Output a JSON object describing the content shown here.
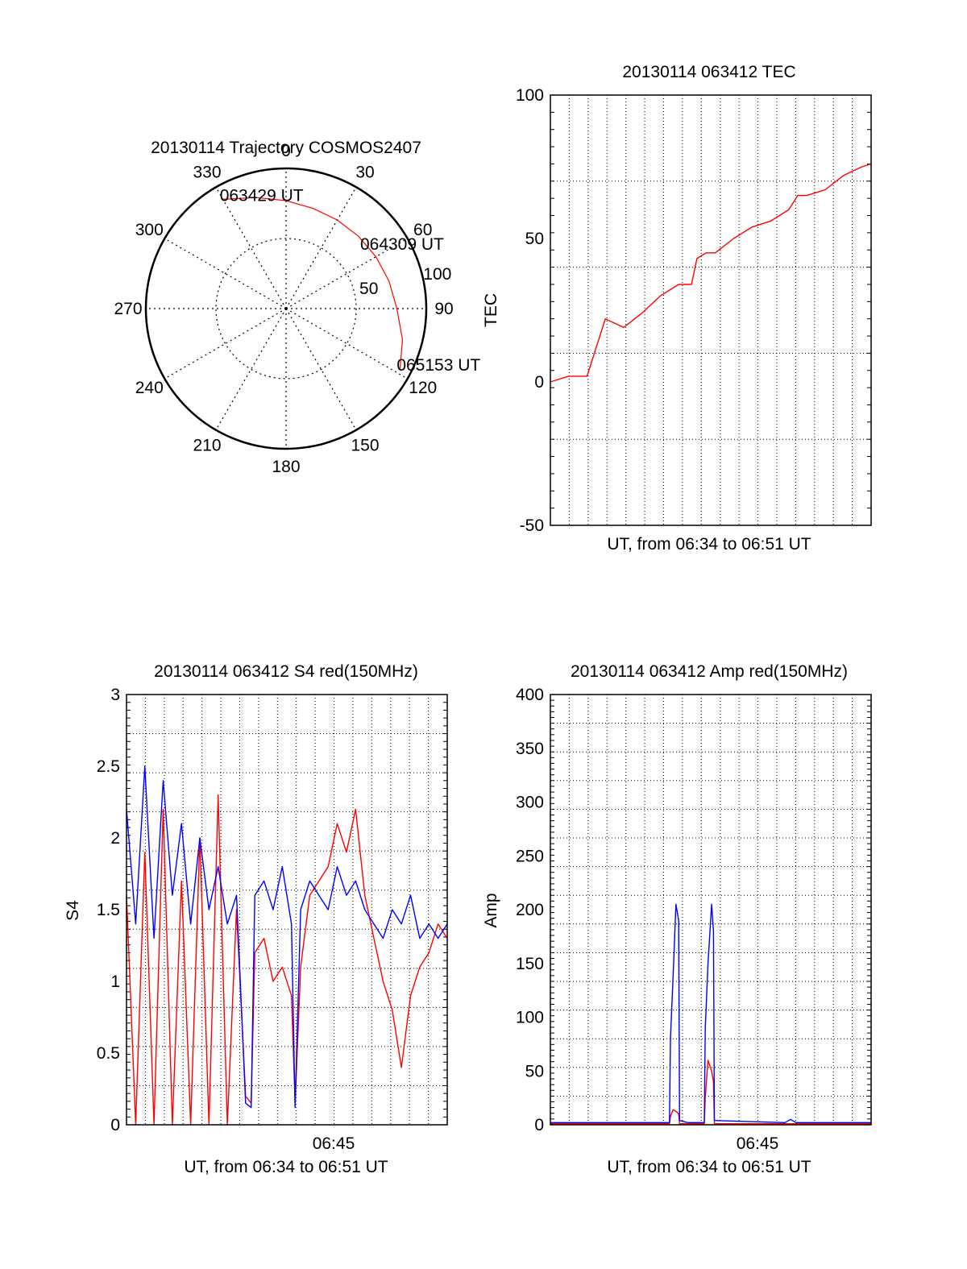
{
  "colors": {
    "red": "#ff0000",
    "blue": "#0000ff",
    "axis": "#000000",
    "grid": "#000000"
  },
  "chart_data": [
    {
      "type": "polar",
      "title": "20130114 Trajectory COSMOS2407",
      "angle_labels": [
        "0",
        "30",
        "60",
        "90",
        "120",
        "150",
        "180",
        "210",
        "240",
        "270",
        "300",
        "330"
      ],
      "radius_labels": [
        "50",
        "100"
      ],
      "radius_values": [
        50,
        100
      ],
      "grid": true,
      "series": [
        {
          "color": "red",
          "points": [
            {
              "az": 330,
              "zr": 90
            },
            {
              "az": 345,
              "zr": 82
            },
            {
              "az": 0,
              "zr": 77
            },
            {
              "az": 15,
              "zr": 74
            },
            {
              "az": 30,
              "zr": 73
            },
            {
              "az": 45,
              "zr": 73
            },
            {
              "az": 60,
              "zr": 74
            },
            {
              "az": 75,
              "zr": 76
            },
            {
              "az": 90,
              "zr": 79
            },
            {
              "az": 105,
              "zr": 86
            },
            {
              "az": 118,
              "zr": 92
            }
          ]
        }
      ],
      "annotations": [
        {
          "text": "063429 UT",
          "az": 330,
          "zr": 90
        },
        {
          "text": "064309 UT",
          "az": 52,
          "zr": 70
        },
        {
          "text": "065153 UT",
          "az": 118,
          "zr": 92
        }
      ]
    },
    {
      "type": "line",
      "title": "20130114 063412 TEC",
      "ylabel": "TEC",
      "xlabel": "UT, from 06:34 to 06:51 UT",
      "xlim": [
        0,
        17.5
      ],
      "ylim": [
        -50,
        100
      ],
      "yticks": [
        -50,
        0,
        50,
        100
      ],
      "xticks": [],
      "grid": true,
      "series": [
        {
          "color": "red",
          "x": [
            0,
            1,
            2,
            3,
            4,
            5,
            6,
            7,
            7.7,
            8,
            8.5,
            9,
            10,
            11,
            12,
            13,
            13.5,
            14,
            15,
            16,
            17,
            17.5
          ],
          "y": [
            0,
            2,
            2,
            22,
            19,
            24,
            30,
            34,
            34,
            43,
            45,
            45,
            50,
            54,
            56,
            60,
            65,
            65,
            67,
            72,
            75,
            76
          ]
        }
      ]
    },
    {
      "type": "line",
      "title": "20130114 063412 S4 red(150MHz)",
      "ylabel": "S4",
      "xlabel": "UT, from 06:34 to 06:51 UT",
      "xlim": [
        0,
        17.5
      ],
      "ylim": [
        0,
        3
      ],
      "yticks": [
        0,
        0.5,
        1,
        1.5,
        2,
        2.5,
        3
      ],
      "xticks": [
        {
          "value": 11.3,
          "label": "06:45"
        }
      ],
      "grid": true,
      "series": [
        {
          "color": "red",
          "x": [
            0,
            0.5,
            1,
            1.5,
            2,
            2.5,
            3,
            3.5,
            4,
            4.5,
            5,
            5.5,
            6,
            6.5,
            6.8,
            7,
            7.5,
            8,
            8.5,
            9,
            9.2,
            9.5,
            10,
            10.5,
            11,
            11.5,
            12,
            12.5,
            13,
            13.5,
            14,
            14.5,
            15,
            15.5,
            16,
            16.5,
            17,
            17.5
          ],
          "y": [
            1.6,
            0,
            1.9,
            0,
            2.2,
            0,
            1.7,
            0,
            2.0,
            0,
            2.3,
            0,
            1.5,
            0.2,
            0.15,
            1.2,
            1.3,
            1.0,
            1.1,
            0.9,
            0.15,
            1.1,
            1.6,
            1.7,
            1.8,
            2.1,
            1.9,
            2.2,
            1.6,
            1.3,
            1.0,
            0.8,
            0.4,
            0.9,
            1.1,
            1.2,
            1.4,
            1.3
          ]
        },
        {
          "color": "blue",
          "x": [
            0,
            0.5,
            1,
            1.5,
            2,
            2.5,
            3,
            3.5,
            4,
            4.5,
            5,
            5.5,
            6,
            6.5,
            6.8,
            7,
            7.5,
            8,
            8.5,
            9,
            9.2,
            9.5,
            10,
            10.5,
            11,
            11.5,
            12,
            12.5,
            13,
            13.5,
            14,
            14.5,
            15,
            15.5,
            16,
            16.5,
            17,
            17.5
          ],
          "y": [
            2.2,
            1.4,
            2.5,
            1.3,
            2.4,
            1.6,
            2.1,
            1.4,
            2.0,
            1.5,
            1.8,
            1.4,
            1.6,
            0.15,
            0.12,
            1.6,
            1.7,
            1.5,
            1.8,
            1.4,
            0.12,
            1.5,
            1.7,
            1.6,
            1.5,
            1.8,
            1.6,
            1.7,
            1.5,
            1.4,
            1.3,
            1.5,
            1.4,
            1.6,
            1.3,
            1.4,
            1.3,
            1.4
          ]
        }
      ]
    },
    {
      "type": "line",
      "title": "20130114 063412 Amp red(150MHz)",
      "ylabel": "Amp",
      "xlabel": "UT, from 06:34 to 06:51 UT",
      "xlim": [
        0,
        17.5
      ],
      "ylim": [
        0,
        400
      ],
      "yticks": [
        0,
        50,
        100,
        150,
        200,
        250,
        300,
        350,
        400
      ],
      "xticks": [
        {
          "value": 11.3,
          "label": "06:45"
        }
      ],
      "grid": true,
      "series": [
        {
          "color": "red",
          "x": [
            0,
            6.5,
            6.55,
            6.7,
            6.9,
            7.0,
            7.05,
            8.4,
            8.45,
            8.6,
            8.8,
            8.9,
            8.95,
            17.5
          ],
          "y": [
            1,
            1,
            8,
            14,
            12,
            10,
            1,
            1,
            25,
            60,
            50,
            40,
            1,
            1
          ]
        },
        {
          "color": "blue",
          "x": [
            0,
            6.5,
            6.55,
            6.7,
            6.85,
            7.0,
            7.05,
            7.5,
            8.4,
            8.45,
            8.6,
            8.8,
            8.9,
            8.95,
            12.8,
            13.1,
            13.4,
            17.5
          ],
          "y": [
            2,
            2,
            80,
            140,
            205,
            190,
            4,
            2,
            2,
            90,
            150,
            205,
            180,
            4,
            2,
            5,
            2,
            2
          ]
        }
      ]
    }
  ]
}
